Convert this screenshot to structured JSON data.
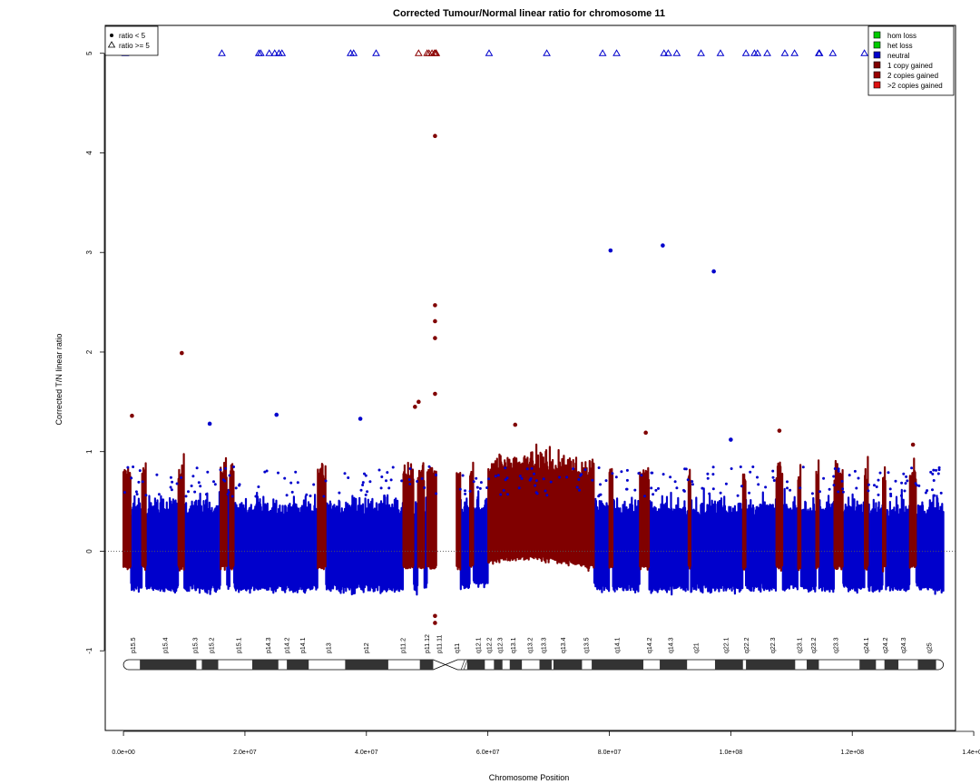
{
  "chart_data": {
    "type": "scatter",
    "title": "Corrected Tumour/Normal linear ratio for chromosome  11",
    "xlabel": "Chromosome Position",
    "ylabel": "Corrected T/N linear ratio",
    "xlim": [
      -3000000,
      137000000
    ],
    "ylim": [
      -1.8,
      5.28
    ],
    "x_ticks": [
      0,
      20000000,
      40000000,
      60000000,
      80000000,
      100000000,
      120000000,
      140000000
    ],
    "x_tick_labels": [
      "0.0e+00",
      "2.0e+07",
      "4.0e+07",
      "6.0e+07",
      "8.0e+07",
      "1.0e+08",
      "1.2e+08",
      "1.4e+08"
    ],
    "y_ticks": [
      -1,
      0,
      1,
      2,
      3,
      4,
      5
    ],
    "y_tick_labels": [
      "-1",
      "0",
      "1",
      "2",
      "3",
      "4",
      "5"
    ],
    "reference_line": 0,
    "shape_legend": {
      "items": [
        {
          "label": "ratio < 5",
          "shape": "dot"
        },
        {
          "label": "ratio >= 5",
          "shape": "triangle"
        }
      ]
    },
    "color_legend": {
      "placement": "top-right",
      "items": [
        {
          "label": "hom loss",
          "color": "#00cc00"
        },
        {
          "label": "het loss",
          "color": "#00cc00"
        },
        {
          "label": "neutral",
          "color": "#0000cc"
        },
        {
          "label": "1 copy gained",
          "color": "#800000"
        },
        {
          "label": "2 copies gained",
          "color": "#990000"
        },
        {
          "label": ">2 copies gained",
          "color": "#dd1111"
        }
      ]
    },
    "colors": {
      "neutral": "#0000cc",
      "gain": "#800000",
      "gain_tri": "#8b0000"
    },
    "neutral_span": [
      0,
      135000000
    ],
    "centromere_gap": [
      51500000,
      54800000
    ],
    "gain_regions": [
      [
        0.0,
        1.2
      ],
      [
        3.0,
        3.7
      ],
      [
        9.0,
        10.0
      ],
      [
        16.0,
        17.0
      ],
      [
        17.5,
        18.2
      ],
      [
        32.0,
        33.3
      ],
      [
        46.0,
        47.8
      ],
      [
        48.5,
        49.5
      ],
      [
        50.0,
        51.5
      ],
      [
        54.8,
        55.5
      ],
      [
        57.0,
        57.6
      ],
      [
        60.0,
        77.5
      ],
      [
        80.0,
        80.6
      ],
      [
        85.0,
        86.5
      ],
      [
        93.0,
        93.4
      ],
      [
        102.0,
        102.5
      ],
      [
        107.5,
        108.5
      ],
      [
        111.0,
        111.5
      ],
      [
        114.0,
        114.5
      ],
      [
        117.0,
        118.5
      ],
      [
        122.0,
        122.6
      ],
      [
        125.0,
        125.5
      ],
      [
        129.5,
        130.5
      ]
    ],
    "highlight_points": [
      {
        "x": 9.6,
        "y": 1.99,
        "class": "gain"
      },
      {
        "x": 1.4,
        "y": 1.36,
        "class": "gain"
      },
      {
        "x": 14.2,
        "y": 1.28,
        "class": "neutral"
      },
      {
        "x": 25.2,
        "y": 1.37,
        "class": "neutral"
      },
      {
        "x": 39.0,
        "y": 1.33,
        "class": "neutral"
      },
      {
        "x": 48.0,
        "y": 1.45,
        "class": "gain"
      },
      {
        "x": 48.6,
        "y": 1.5,
        "class": "gain"
      },
      {
        "x": 51.3,
        "y": 4.17,
        "class": "gain"
      },
      {
        "x": 51.3,
        "y": 2.47,
        "class": "gain"
      },
      {
        "x": 51.3,
        "y": 2.31,
        "class": "gain"
      },
      {
        "x": 51.3,
        "y": 2.14,
        "class": "gain"
      },
      {
        "x": 51.3,
        "y": 1.58,
        "class": "gain"
      },
      {
        "x": 51.3,
        "y": -0.65,
        "class": "gain"
      },
      {
        "x": 51.3,
        "y": -0.72,
        "class": "gain"
      },
      {
        "x": 64.5,
        "y": 1.27,
        "class": "gain"
      },
      {
        "x": 80.2,
        "y": 3.02,
        "class": "neutral"
      },
      {
        "x": 88.8,
        "y": 3.07,
        "class": "neutral"
      },
      {
        "x": 97.2,
        "y": 2.81,
        "class": "neutral"
      },
      {
        "x": 86.0,
        "y": 1.19,
        "class": "gain"
      },
      {
        "x": 100.0,
        "y": 1.12,
        "class": "neutral"
      },
      {
        "x": 108.0,
        "y": 1.21,
        "class": "gain"
      },
      {
        "x": 130.0,
        "y": 1.07,
        "class": "gain"
      }
    ],
    "capped_points": {
      "y": 5,
      "neutral_x": [
        0.3,
        16.2,
        22.3,
        22.6,
        24.0,
        24.9,
        25.6,
        26.1,
        37.4,
        37.9,
        41.6,
        60.2,
        69.7,
        78.9,
        81.2,
        89.0,
        89.7,
        91.1,
        95.1,
        98.3,
        102.5,
        103.9,
        104.4,
        106.0,
        108.9,
        110.5,
        114.5,
        114.6,
        116.8,
        122.0,
        127.0,
        129.0,
        131.0
      ],
      "gain_x": [
        48.6,
        50.0,
        50.3,
        50.8,
        51.2,
        51.4,
        51.5
      ]
    },
    "ideogram": {
      "start": 0,
      "end": 135000000,
      "centromere": [
        51000000,
        55000000
      ],
      "band_labels": [
        {
          "label": "p15.5",
          "pos": 1.6
        },
        {
          "label": "p15.4",
          "pos": 6.9
        },
        {
          "label": "p15.3",
          "pos": 11.8
        },
        {
          "label": "p15.2",
          "pos": 14.5
        },
        {
          "label": "p15.1",
          "pos": 19.0
        },
        {
          "label": "p14.3",
          "pos": 23.8
        },
        {
          "label": "p14.2",
          "pos": 26.9
        },
        {
          "label": "p14.1",
          "pos": 29.5
        },
        {
          "label": "p13",
          "pos": 33.8
        },
        {
          "label": "p12",
          "pos": 40.0
        },
        {
          "label": "p11.2",
          "pos": 46.0
        },
        {
          "label": "p11.12",
          "pos": 50.0
        },
        {
          "label": "p11.11",
          "pos": 52.0
        },
        {
          "label": "q11",
          "pos": 54.9
        },
        {
          "label": "q12.1",
          "pos": 58.4
        },
        {
          "label": "q12.2",
          "pos": 60.2
        },
        {
          "label": "q12.3",
          "pos": 62.0
        },
        {
          "label": "q13.1",
          "pos": 64.2
        },
        {
          "label": "q13.2",
          "pos": 66.9
        },
        {
          "label": "q13.3",
          "pos": 69.2
        },
        {
          "label": "q13.4",
          "pos": 72.4
        },
        {
          "label": "q13.5",
          "pos": 76.2
        },
        {
          "label": "q14.1",
          "pos": 81.3
        },
        {
          "label": "q14.2",
          "pos": 86.6
        },
        {
          "label": "q14.3",
          "pos": 90.1
        },
        {
          "label": "q21",
          "pos": 94.3
        },
        {
          "label": "q22.1",
          "pos": 99.2
        },
        {
          "label": "q22.2",
          "pos": 102.6
        },
        {
          "label": "q22.3",
          "pos": 106.9
        },
        {
          "label": "q23.1",
          "pos": 111.3
        },
        {
          "label": "q23.2",
          "pos": 113.6
        },
        {
          "label": "q23.3",
          "pos": 117.3
        },
        {
          "label": "q24.1",
          "pos": 122.3
        },
        {
          "label": "q24.2",
          "pos": 125.4
        },
        {
          "label": "q24.3",
          "pos": 128.4
        },
        {
          "label": "q25",
          "pos": 132.7
        }
      ],
      "dark_bands": [
        [
          2.7,
          12.0
        ],
        [
          12.9,
          15.6
        ],
        [
          21.2,
          25.5
        ],
        [
          26.9,
          30.5
        ],
        [
          36.5,
          43.6
        ],
        [
          48.8,
          51.0
        ],
        [
          56.6,
          59.5
        ],
        [
          61.0,
          62.4
        ],
        [
          63.6,
          65.6
        ],
        [
          68.5,
          70.5
        ],
        [
          70.8,
          75.5
        ],
        [
          77.1,
          85.6
        ],
        [
          88.3,
          92.8
        ],
        [
          97.4,
          102.0
        ],
        [
          102.5,
          110.6
        ],
        [
          112.5,
          114.5
        ],
        [
          121.2,
          123.9
        ],
        [
          125.3,
          127.6
        ],
        [
          130.8,
          133.8
        ]
      ]
    }
  }
}
